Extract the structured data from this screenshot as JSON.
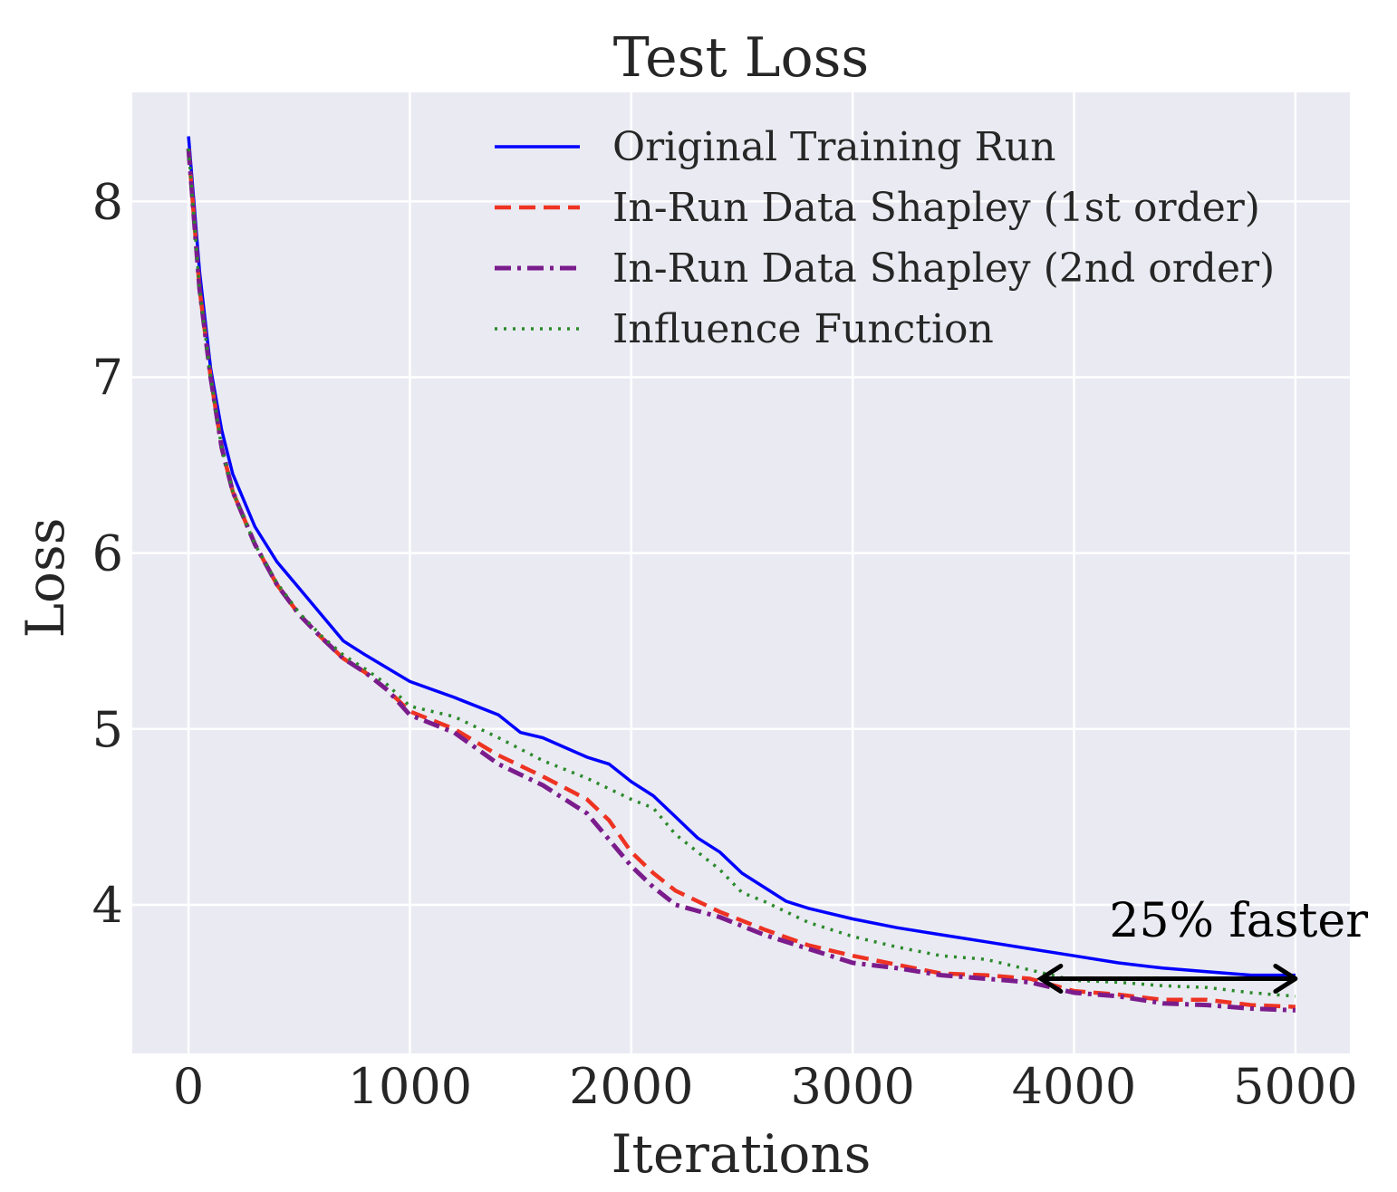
{
  "chart_data": {
    "type": "line",
    "title": "Test Loss",
    "xlabel": "Iterations",
    "ylabel": "Loss",
    "xlim": [
      -254,
      5246
    ],
    "ylim": [
      3.155,
      8.62
    ],
    "xticks": [
      0,
      1000,
      2000,
      3000,
      4000,
      5000
    ],
    "yticks": [
      4,
      5,
      6,
      7,
      8
    ],
    "grid": true,
    "legend_position": "top-right",
    "background": "#eaeaf2",
    "series": [
      {
        "name": "Original Training Run",
        "color": "#0000ff",
        "style": "solid",
        "x": [
          0,
          50,
          100,
          150,
          200,
          300,
          400,
          500,
          600,
          700,
          800,
          1000,
          1200,
          1400,
          1500,
          1600,
          1800,
          1900,
          2000,
          2100,
          2200,
          2300,
          2400,
          2500,
          2600,
          2700,
          2800,
          3000,
          3200,
          3400,
          3600,
          3800,
          4000,
          4200,
          4400,
          4600,
          4800,
          5000
        ],
        "y": [
          8.37,
          7.6,
          7.05,
          6.7,
          6.45,
          6.15,
          5.95,
          5.8,
          5.65,
          5.5,
          5.42,
          5.27,
          5.18,
          5.08,
          4.98,
          4.95,
          4.84,
          4.8,
          4.7,
          4.62,
          4.5,
          4.38,
          4.3,
          4.18,
          4.1,
          4.02,
          3.98,
          3.92,
          3.87,
          3.83,
          3.79,
          3.75,
          3.71,
          3.67,
          3.64,
          3.62,
          3.6,
          3.6
        ]
      },
      {
        "name": "In-Run Data Shapley (1st order)",
        "color": "#ee3322",
        "style": "dashed",
        "x": [
          0,
          50,
          100,
          150,
          200,
          300,
          400,
          500,
          600,
          700,
          800,
          900,
          1000,
          1200,
          1400,
          1600,
          1800,
          1900,
          2000,
          2100,
          2200,
          2400,
          2600,
          2800,
          3000,
          3200,
          3400,
          3600,
          3800,
          4000,
          4200,
          4400,
          4600,
          4800,
          5000
        ],
        "y": [
          8.3,
          7.5,
          7.0,
          6.6,
          6.35,
          6.05,
          5.82,
          5.65,
          5.52,
          5.4,
          5.32,
          5.22,
          5.1,
          5.0,
          4.85,
          4.73,
          4.6,
          4.48,
          4.3,
          4.18,
          4.08,
          3.96,
          3.86,
          3.77,
          3.71,
          3.66,
          3.61,
          3.6,
          3.58,
          3.51,
          3.49,
          3.46,
          3.46,
          3.43,
          3.42
        ]
      },
      {
        "name": "In-Run Data Shapley (2nd order)",
        "color": "#7b1c8c",
        "style": "dashdot",
        "x": [
          0,
          50,
          100,
          150,
          200,
          300,
          400,
          500,
          600,
          700,
          800,
          900,
          1000,
          1200,
          1400,
          1600,
          1800,
          1900,
          2000,
          2100,
          2200,
          2400,
          2600,
          2800,
          3000,
          3200,
          3400,
          3600,
          3800,
          4000,
          4200,
          4400,
          4600,
          4800,
          5000
        ],
        "y": [
          8.3,
          7.5,
          7.0,
          6.6,
          6.35,
          6.05,
          5.82,
          5.65,
          5.52,
          5.4,
          5.32,
          5.22,
          5.08,
          4.98,
          4.8,
          4.68,
          4.52,
          4.37,
          4.22,
          4.1,
          4.0,
          3.93,
          3.83,
          3.75,
          3.67,
          3.64,
          3.6,
          3.58,
          3.56,
          3.5,
          3.48,
          3.44,
          3.43,
          3.41,
          3.4
        ]
      },
      {
        "name": "Influence Function",
        "color": "#2a8a2a",
        "style": "dotted",
        "x": [
          0,
          50,
          100,
          150,
          200,
          300,
          400,
          500,
          600,
          700,
          800,
          900,
          1000,
          1200,
          1400,
          1600,
          1800,
          2000,
          2100,
          2200,
          2300,
          2400,
          2500,
          2600,
          2800,
          3000,
          3200,
          3400,
          3600,
          3800,
          4000,
          4200,
          4400,
          4600,
          4800,
          5000
        ],
        "y": [
          8.3,
          7.5,
          7.0,
          6.6,
          6.35,
          6.05,
          5.83,
          5.66,
          5.53,
          5.42,
          5.34,
          5.25,
          5.13,
          5.07,
          4.95,
          4.82,
          4.72,
          4.6,
          4.55,
          4.4,
          4.3,
          4.2,
          4.07,
          4.02,
          3.9,
          3.82,
          3.76,
          3.71,
          3.69,
          3.63,
          3.57,
          3.56,
          3.54,
          3.53,
          3.5,
          3.48
        ]
      }
    ],
    "annotations": [
      {
        "text": "25% faster",
        "arrow": {
          "x_from": 3850,
          "x_to": 5000,
          "y": 3.58,
          "style": "double-headed",
          "color": "#000000"
        }
      }
    ]
  }
}
